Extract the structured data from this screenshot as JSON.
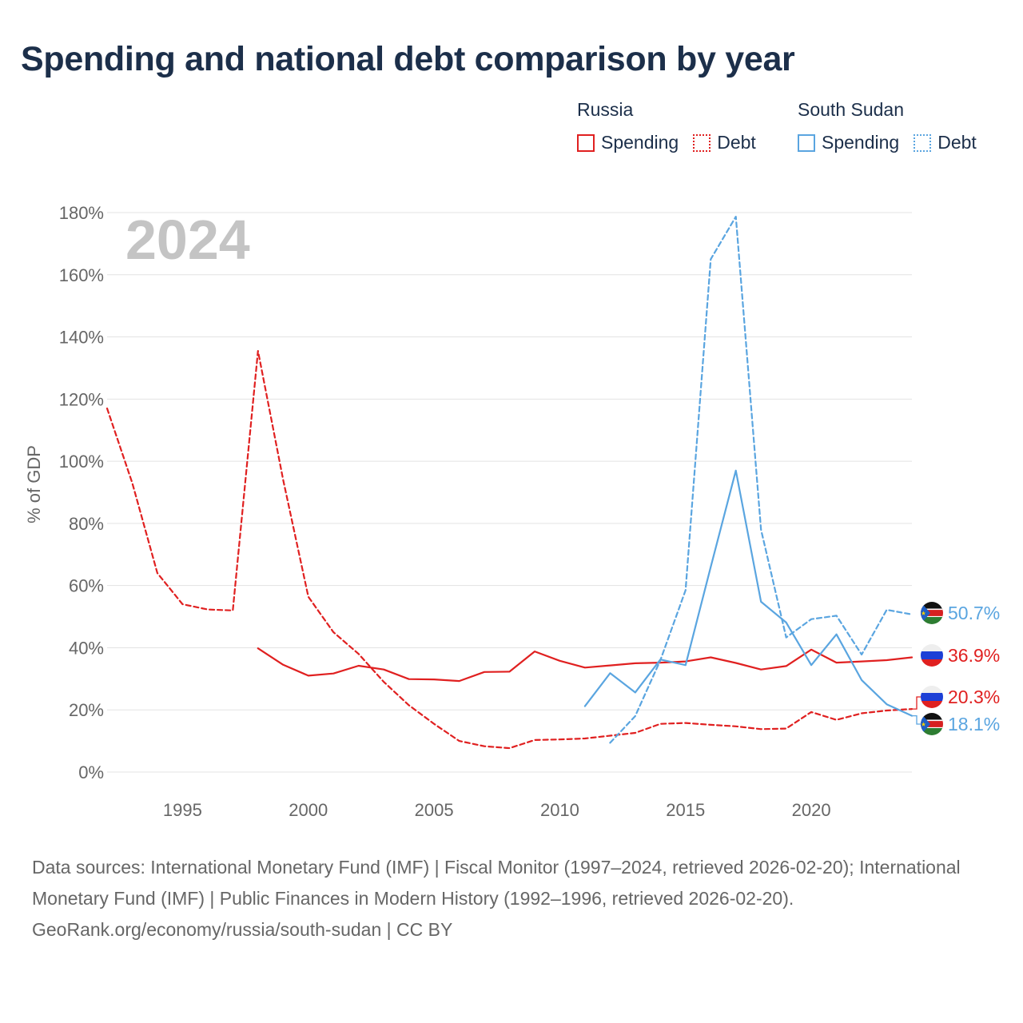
{
  "title": "Spending and national debt comparison by year",
  "year_label": "2024",
  "legend": [
    {
      "country": "Russia",
      "color": "#e02020",
      "items": [
        {
          "label": "Spending",
          "style": "solid"
        },
        {
          "label": "Debt",
          "style": "dotted"
        }
      ]
    },
    {
      "country": "South Sudan",
      "color": "#5aa5e0",
      "items": [
        {
          "label": "Spending",
          "style": "solid"
        },
        {
          "label": "Debt",
          "style": "dotted"
        }
      ]
    }
  ],
  "chart_data": {
    "type": "line",
    "ylabel": "% of GDP",
    "ylim": [
      0,
      180
    ],
    "xlim": [
      1992,
      2024
    ],
    "y_ticks": [
      0,
      20,
      40,
      60,
      80,
      100,
      120,
      140,
      160,
      180
    ],
    "y_tick_labels": [
      "0%",
      "20%",
      "40%",
      "60%",
      "80%",
      "100%",
      "120%",
      "140%",
      "160%",
      "180%"
    ],
    "x_ticks": [
      1995,
      2000,
      2005,
      2010,
      2015,
      2020
    ],
    "x_tick_labels": [
      "1995",
      "2000",
      "2005",
      "2010",
      "2015",
      "2020"
    ],
    "series": [
      {
        "name": "Russia Debt",
        "color": "#e02020",
        "dash": "6,4",
        "x": [
          1992,
          1993,
          1994,
          1995,
          1996,
          1997,
          1998,
          1999,
          2000,
          2001,
          2002,
          2003,
          2004,
          2005,
          2006,
          2007,
          2008,
          2009,
          2010,
          2011,
          2012,
          2013,
          2014,
          2015,
          2016,
          2017,
          2018,
          2019,
          2020,
          2021,
          2022,
          2023,
          2024
        ],
        "values": [
          117,
          93,
          64,
          54,
          52.3,
          52,
          135.5,
          94,
          56.4,
          45,
          38,
          29,
          21.5,
          15.5,
          10,
          8.3,
          7.7,
          10.3,
          10.5,
          10.8,
          11.7,
          12.6,
          15.5,
          15.8,
          15.2,
          14.7,
          13.8,
          14,
          19.3,
          16.8,
          18.9,
          19.8,
          20.3
        ],
        "end_label": "20.3%"
      },
      {
        "name": "Russia Spending",
        "color": "#e02020",
        "dash": "",
        "x": [
          1998,
          1999,
          2000,
          2001,
          2002,
          2003,
          2004,
          2005,
          2006,
          2007,
          2008,
          2009,
          2010,
          2011,
          2012,
          2013,
          2014,
          2015,
          2016,
          2017,
          2018,
          2019,
          2020,
          2021,
          2022,
          2023,
          2024
        ],
        "values": [
          39.8,
          34.5,
          31,
          31.7,
          34.2,
          33,
          29.9,
          29.8,
          29.3,
          32.2,
          32.3,
          38.8,
          35.8,
          33.6,
          34.3,
          35,
          35.2,
          35.6,
          36.9,
          35.1,
          33,
          34.1,
          39.4,
          35.2,
          35.6,
          36,
          36.9
        ],
        "end_label": "36.9%"
      },
      {
        "name": "South Sudan Debt",
        "color": "#5aa5e0",
        "dash": "6,4",
        "x": [
          2012,
          2013,
          2014,
          2015,
          2016,
          2017,
          2018,
          2019,
          2020,
          2021,
          2022,
          2023,
          2024
        ],
        "values": [
          9.4,
          18,
          36,
          58.5,
          165,
          178.7,
          78,
          43.3,
          49.2,
          50.3,
          37.8,
          52.2,
          50.7
        ],
        "end_label": "50.7%"
      },
      {
        "name": "South Sudan Spending",
        "color": "#5aa5e0",
        "dash": "",
        "x": [
          2011,
          2012,
          2013,
          2014,
          2015,
          2016,
          2017,
          2018,
          2019,
          2020,
          2021,
          2022,
          2023,
          2024
        ],
        "values": [
          21.2,
          31.8,
          25.6,
          36.2,
          34.4,
          66,
          97,
          54.8,
          48.1,
          34.4,
          44.3,
          29.6,
          21.8,
          18.1
        ],
        "end_label": "18.1%"
      }
    ]
  },
  "footer": {
    "sources": "Data sources: International Monetary Fund (IMF) | Fiscal Monitor (1997–2024, retrieved 2026-02-20); International Monetary Fund (IMF) | Public Finances in Modern History (1992–1996, retrieved 2026-02-20).",
    "credit": "GeoRank.org/economy/russia/south-sudan | CC BY"
  }
}
